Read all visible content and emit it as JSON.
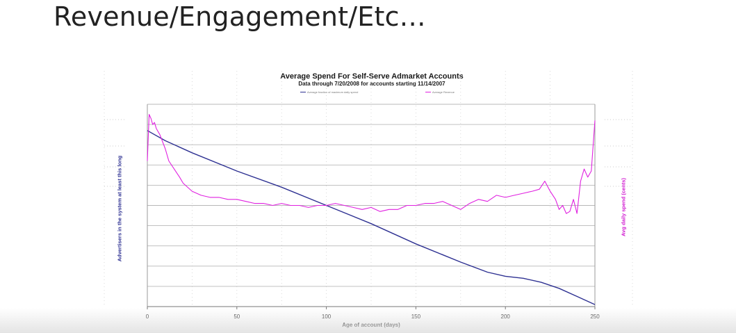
{
  "slide": {
    "title": "Revenue/Engagement/Etc…"
  },
  "colors": {
    "fraction_line": "#2e3192",
    "revenue_line": "#e020e0",
    "gridline": "#b8b8b8"
  },
  "chart_data": {
    "type": "line",
    "title": "Average Spend For Self-Serve Admarket Accounts",
    "subtitle": "Data through 7/20/2008 for accounts starting 11/14/2007",
    "xlabel": "Age of account (days)",
    "ylabel_left": "Advertisers in the system at least this long",
    "ylabel_right": "Avg daily spend (cents)",
    "x_ticks": [
      "0",
      "50",
      "100",
      "150",
      "200",
      "250"
    ],
    "xlim": [
      0,
      250
    ],
    "grid": true,
    "legend_position": "top",
    "series": [
      {
        "name": "Average fraction of maximum daily spend",
        "color": "#2e3192",
        "x": [
          0,
          10,
          25,
          50,
          75,
          100,
          125,
          150,
          175,
          190,
          200,
          210,
          220,
          230,
          240,
          245,
          250
        ],
        "y": [
          0.87,
          0.82,
          0.76,
          0.67,
          0.59,
          0.5,
          0.41,
          0.31,
          0.22,
          0.17,
          0.15,
          0.14,
          0.12,
          0.09,
          0.05,
          0.03,
          0.01
        ]
      },
      {
        "name": "Average Revenue",
        "color": "#e020e0",
        "x": [
          0,
          1,
          2,
          3,
          4,
          5,
          7,
          10,
          12,
          15,
          18,
          20,
          25,
          30,
          35,
          40,
          45,
          50,
          55,
          60,
          65,
          70,
          75,
          80,
          85,
          90,
          95,
          100,
          105,
          110,
          115,
          120,
          125,
          130,
          135,
          140,
          145,
          150,
          155,
          160,
          165,
          170,
          175,
          180,
          185,
          190,
          195,
          200,
          205,
          210,
          215,
          219,
          222,
          225,
          228,
          230,
          232,
          234,
          236,
          238,
          240,
          242,
          244,
          246,
          248,
          250
        ],
        "y": [
          0.72,
          0.95,
          0.93,
          0.9,
          0.91,
          0.88,
          0.85,
          0.78,
          0.72,
          0.68,
          0.64,
          0.61,
          0.57,
          0.55,
          0.54,
          0.54,
          0.53,
          0.53,
          0.52,
          0.51,
          0.51,
          0.5,
          0.51,
          0.5,
          0.5,
          0.49,
          0.5,
          0.5,
          0.51,
          0.5,
          0.49,
          0.48,
          0.49,
          0.47,
          0.48,
          0.48,
          0.5,
          0.5,
          0.51,
          0.51,
          0.52,
          0.5,
          0.48,
          0.51,
          0.53,
          0.52,
          0.55,
          0.54,
          0.55,
          0.56,
          0.57,
          0.58,
          0.62,
          0.57,
          0.53,
          0.48,
          0.5,
          0.46,
          0.47,
          0.53,
          0.46,
          0.62,
          0.68,
          0.64,
          0.67,
          0.92
        ]
      }
    ]
  }
}
